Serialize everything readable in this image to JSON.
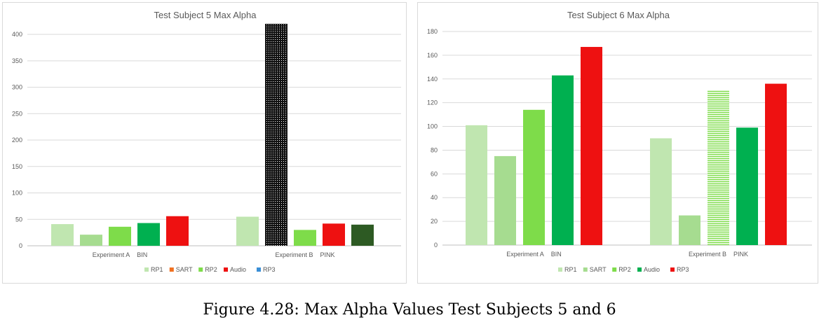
{
  "caption": "Figure 4.28: Max Alpha Values Test Subjects 5 and 6",
  "chart_data": [
    {
      "type": "bar",
      "title": "Test Subject 5 Max Alpha",
      "xlabel": "",
      "ylabel": "",
      "ylim": [
        0,
        420
      ],
      "yticks": [
        0,
        50,
        100,
        150,
        200,
        250,
        300,
        350,
        400
      ],
      "grid": true,
      "legend_position": "bottom",
      "category_labels": [
        [
          "Experiment A",
          "BIN"
        ],
        [
          "Experiment B",
          "PINK"
        ]
      ],
      "legend": [
        {
          "name": "RP1",
          "color": "#c0e6b0"
        },
        {
          "name": "SART",
          "color": "#f07020"
        },
        {
          "name": "RP2",
          "color": "#7edc4a"
        },
        {
          "name": "Audio",
          "color": "#ee1111"
        },
        {
          "name": "RP3",
          "color": "#3a8fd6"
        }
      ],
      "groups": [
        {
          "bars": [
            {
              "value": 41,
              "color": "#c0e6b0",
              "pattern": "solid"
            },
            {
              "value": 21,
              "color": "#a6dc90",
              "pattern": "solid"
            },
            {
              "value": 36,
              "color": "#7edc4a",
              "pattern": "solid"
            },
            {
              "value": 43,
              "color": "#00b050",
              "pattern": "solid"
            },
            {
              "value": 56,
              "color": "#ee1111",
              "pattern": "solid"
            }
          ]
        },
        {
          "bars": [
            {
              "value": 55,
              "color": "#c0e6b0",
              "pattern": "solid"
            },
            {
              "value": 420,
              "color": "#111111",
              "pattern": "dots"
            },
            {
              "value": 30,
              "color": "#7edc4a",
              "pattern": "solid"
            },
            {
              "value": 42,
              "color": "#ee1111",
              "pattern": "solid"
            },
            {
              "value": 40,
              "color": "#2d5a23",
              "pattern": "solid"
            }
          ]
        }
      ]
    },
    {
      "type": "bar",
      "title": "Test Subject 6 Max Alpha",
      "xlabel": "",
      "ylabel": "",
      "ylim": [
        0,
        180
      ],
      "yticks": [
        0,
        20,
        40,
        60,
        80,
        100,
        120,
        140,
        160,
        180
      ],
      "grid": true,
      "legend_position": "bottom",
      "category_labels": [
        [
          "Experiment A",
          "BIN"
        ],
        [
          "Experiment B",
          "PINK"
        ]
      ],
      "legend": [
        {
          "name": "RP1",
          "color": "#c0e6b0"
        },
        {
          "name": "SART",
          "color": "#a6dc90"
        },
        {
          "name": "RP2",
          "color": "#7edc4a"
        },
        {
          "name": "Audio",
          "color": "#00b050"
        },
        {
          "name": "RP3",
          "color": "#ee1111"
        }
      ],
      "groups": [
        {
          "bars": [
            {
              "value": 101,
              "color": "#c0e6b0",
              "pattern": "solid"
            },
            {
              "value": 75,
              "color": "#a6dc90",
              "pattern": "solid"
            },
            {
              "value": 114,
              "color": "#7edc4a",
              "pattern": "solid"
            },
            {
              "value": 143,
              "color": "#00b050",
              "pattern": "solid"
            },
            {
              "value": 167,
              "color": "#ee1111",
              "pattern": "solid"
            }
          ]
        },
        {
          "bars": [
            {
              "value": 90,
              "color": "#c0e6b0",
              "pattern": "solid"
            },
            {
              "value": 25,
              "color": "#a6dc90",
              "pattern": "solid"
            },
            {
              "value": 130,
              "color": "#7edc4a",
              "pattern": "hstripes"
            },
            {
              "value": 99,
              "color": "#00b050",
              "pattern": "solid"
            },
            {
              "value": 136,
              "color": "#ee1111",
              "pattern": "solid"
            }
          ]
        }
      ]
    }
  ]
}
